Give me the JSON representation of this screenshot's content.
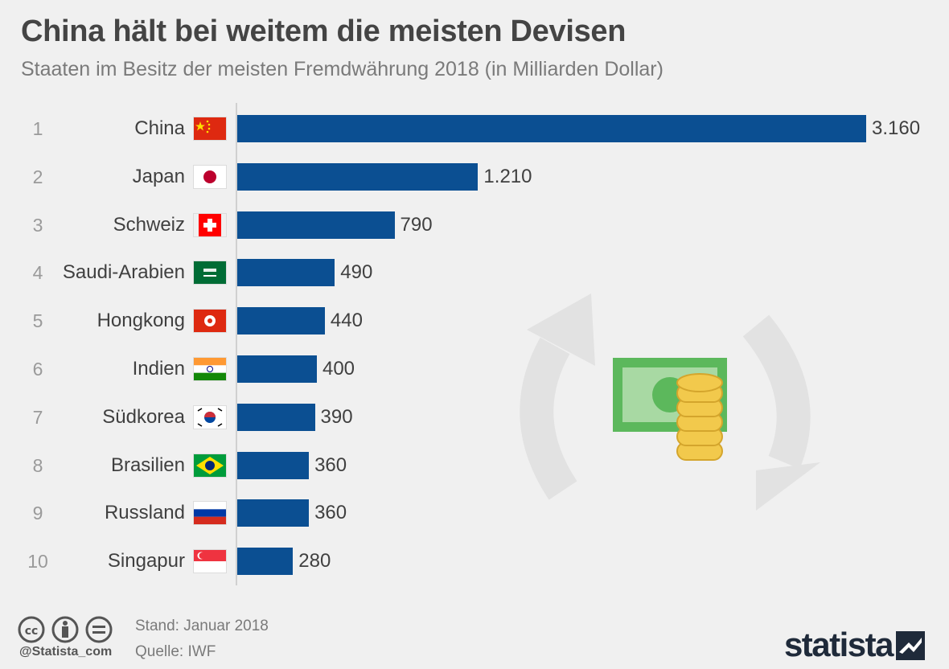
{
  "title": "China hält bei weitem die meisten Devisen",
  "subtitle": "Staaten im Besitz der meisten Fremdwährung 2018 (in Milliarden Dollar)",
  "chart_data": {
    "type": "bar",
    "orientation": "horizontal",
    "ranks": [
      "1",
      "2",
      "3",
      "4",
      "5",
      "6",
      "7",
      "8",
      "9",
      "10"
    ],
    "categories": [
      "China",
      "Japan",
      "Schweiz",
      "Saudi-Arabien",
      "Hongkong",
      "Indien",
      "Südkorea",
      "Brasilien",
      "Russland",
      "Singapur"
    ],
    "values": [
      3160,
      1210,
      790,
      490,
      440,
      400,
      390,
      360,
      360,
      280
    ],
    "value_labels": [
      "3.160",
      "1.210",
      "790",
      "490",
      "440",
      "400",
      "390",
      "360",
      "360",
      "280"
    ],
    "flags": [
      "china-flag",
      "japan-flag",
      "switzerland-flag",
      "saudi-arabia-flag",
      "hongkong-flag",
      "india-flag",
      "south-korea-flag",
      "brazil-flag",
      "russia-flag",
      "singapore-flag"
    ],
    "title": "China hält bei weitem die meisten Devisen",
    "xlabel": "",
    "ylabel": "",
    "xlim": [
      0,
      3160
    ],
    "bar_color": "#0b4f92"
  },
  "footer": {
    "date": "Stand: Januar 2018",
    "source": "Quelle: IWF",
    "handle": "@Statista_com",
    "brand": "statista"
  },
  "icons": [
    "cc-icon",
    "by-icon",
    "nd-icon",
    "money-exchange-icon",
    "statista-logo-icon"
  ],
  "colors": {
    "background": "#f0f0f0",
    "bar": "#0b4f92",
    "title": "#444444",
    "subtitle": "#7a7a7a"
  }
}
